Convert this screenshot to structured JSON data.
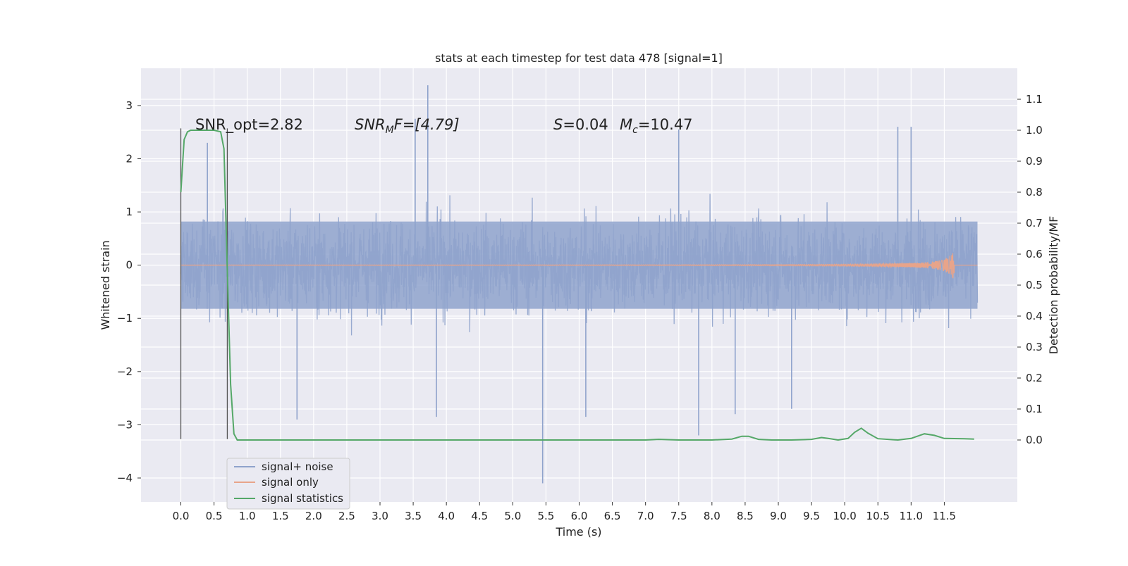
{
  "chart_data": {
    "type": "line",
    "title": "stats at each timestep for test data 478 [signal=1]",
    "xlabel": "Time (s)",
    "ylabel": "Whitened strain",
    "ylabel_right": "Detection probability/MF",
    "xlim": [
      -0.6,
      12.6
    ],
    "ylim": [
      -4.45,
      3.7
    ],
    "ylim_right": [
      -0.2,
      1.2
    ],
    "x_ticks": [
      "0.0",
      "0.5",
      "1.0",
      "1.5",
      "2.0",
      "2.5",
      "3.0",
      "3.5",
      "4.0",
      "4.5",
      "5.0",
      "5.5",
      "6.0",
      "6.5",
      "7.0",
      "7.5",
      "8.0",
      "8.5",
      "9.0",
      "9.5",
      "10.0",
      "10.5",
      "11.0",
      "11.5"
    ],
    "y_ticks_left": [
      "3",
      "2",
      "1",
      "0",
      "−1",
      "−2",
      "−3",
      "−4"
    ],
    "y_ticks_right": [
      "1.1",
      "1.0",
      "0.9",
      "0.8",
      "0.7",
      "0.6",
      "0.5",
      "0.4",
      "0.3",
      "0.2",
      "0.1",
      "0.0"
    ],
    "grid": true,
    "legend_position": "lower-left",
    "annotations": {
      "snr_opt": "SNR_opt=2.82",
      "snr_mf_base": "SNR",
      "snr_mf_sub": "M",
      "snr_mf_rest": "F=[4.79]",
      "s_var": "S",
      "s_val": "=0.04",
      "mc_var": "M",
      "mc_sub": "c",
      "mc_val": "=10.47"
    },
    "vertical_markers_x": [
      0.0,
      0.7
    ],
    "series": [
      {
        "name": "signal+ noise",
        "color": "#8fa3cc",
        "description_values": "Dense noise trace between about -1.0 and 1.0 with spikes reaching about 3.4 (near 3.7 s) and -4.1 (near 5.45 s)",
        "spikes": [
          [
            3.72,
            3.38
          ],
          [
            3.53,
            2.75
          ],
          [
            5.45,
            -4.1
          ],
          [
            7.8,
            -3.2
          ],
          [
            1.75,
            -2.9
          ],
          [
            3.85,
            -2.85
          ],
          [
            6.1,
            -2.85
          ],
          [
            8.35,
            -2.8
          ],
          [
            9.2,
            -2.7
          ],
          [
            11.0,
            2.6
          ],
          [
            10.8,
            2.6
          ],
          [
            7.5,
            2.55
          ],
          [
            0.4,
            2.3
          ]
        ],
        "x_range": [
          0.0,
          12.0
        ]
      },
      {
        "name": "signal only",
        "color": "#e8a48a",
        "description_values": "Chirp waveform near 0, amplitude growing to about 0.3 at 11.65 s then ending",
        "x_range": [
          0.0,
          12.0
        ],
        "peak_time": 11.65,
        "peak_amplitude": 0.3
      },
      {
        "name": "signal statistics",
        "color": "#55a868",
        "axis": "right",
        "x": [
          0.0,
          0.05,
          0.1,
          0.15,
          0.2,
          0.3,
          0.4,
          0.5,
          0.6,
          0.65,
          0.7,
          0.75,
          0.8,
          0.85,
          0.9,
          1.0,
          2.0,
          3.0,
          4.0,
          5.0,
          6.0,
          6.5,
          7.0,
          7.2,
          7.5,
          8.0,
          8.3,
          8.45,
          8.55,
          8.7,
          8.9,
          9.2,
          9.5,
          9.65,
          9.75,
          9.9,
          10.05,
          10.15,
          10.25,
          10.35,
          10.5,
          10.8,
          11.0,
          11.2,
          11.35,
          11.5,
          11.8,
          11.95
        ],
        "y": [
          0.8,
          0.97,
          0.995,
          1.0,
          1.0,
          1.0,
          1.0,
          1.0,
          0.995,
          0.94,
          0.55,
          0.18,
          0.02,
          0.0,
          0.0,
          0.0,
          0.0,
          0.0,
          0.0,
          0.0,
          0.0,
          0.0,
          0.0,
          0.002,
          0.0,
          0.0,
          0.003,
          0.012,
          0.012,
          0.002,
          0.0,
          0.0,
          0.002,
          0.008,
          0.005,
          0.0,
          0.005,
          0.025,
          0.038,
          0.022,
          0.004,
          0.0,
          0.005,
          0.02,
          0.015,
          0.005,
          0.004,
          0.003
        ]
      }
    ]
  }
}
